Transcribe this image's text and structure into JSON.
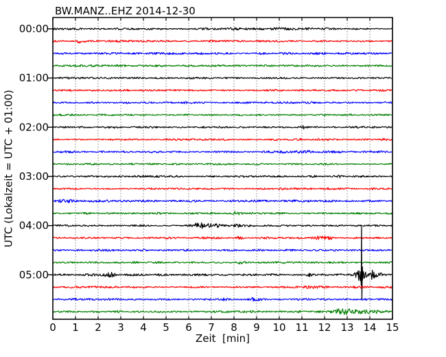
{
  "chart_data": {
    "type": "line",
    "subtype": "helicorder-dayplot",
    "title": "BW.MANZ..EHZ 2014-12-30",
    "xlabel": "Zeit  [min]",
    "ylabel": "UTC (Lokalzeit = UTC + 01:00)",
    "x_range": [
      0,
      15
    ],
    "minutes_per_row": 15,
    "x_tick_labels": [
      "0",
      "1",
      "2",
      "3",
      "4",
      "5",
      "6",
      "7",
      "8",
      "9",
      "10",
      "11",
      "12",
      "13",
      "14",
      "15"
    ],
    "y_tick_labels": [
      "00:00",
      "01:00",
      "02:00",
      "03:00",
      "04:00",
      "05:00"
    ],
    "y_tick_row_step": 4,
    "grid": {
      "vertical_dotted_minutes": [
        1,
        2,
        3,
        4,
        5,
        6,
        7,
        8,
        9,
        10,
        11,
        12,
        13,
        14
      ],
      "horizontal": false
    },
    "background_color": "#ffffff",
    "axis_color": "#000000",
    "trace_color_cycle": [
      "#000000",
      "#ff0000",
      "#0000ff",
      "#007f00"
    ],
    "rows": [
      {
        "time": "00:00",
        "color": "#000000",
        "base": 1.2,
        "events": [
          {
            "t": 9.0,
            "a": 0.7,
            "w": 2.0
          }
        ],
        "spikes": []
      },
      {
        "time": "00:15",
        "color": "#ff0000",
        "base": 1.2,
        "events": [
          {
            "t": 1.15,
            "a": 2.2,
            "w": 0.12
          }
        ],
        "spikes": []
      },
      {
        "time": "00:30",
        "color": "#0000ff",
        "base": 1.2,
        "events": [],
        "spikes": []
      },
      {
        "time": "00:45",
        "color": "#007f00",
        "base": 1.2,
        "events": [],
        "spikes": []
      },
      {
        "time": "01:00",
        "color": "#000000",
        "base": 1.1,
        "events": [],
        "spikes": []
      },
      {
        "time": "01:15",
        "color": "#ff0000",
        "base": 1.2,
        "events": [],
        "spikes": []
      },
      {
        "time": "01:30",
        "color": "#0000ff",
        "base": 1.2,
        "events": [],
        "spikes": []
      },
      {
        "time": "01:45",
        "color": "#007f00",
        "base": 1.1,
        "events": [],
        "spikes": []
      },
      {
        "time": "02:00",
        "color": "#000000",
        "base": 1.1,
        "events": [
          {
            "t": 11.1,
            "a": 1.6,
            "w": 0.15
          }
        ],
        "spikes": []
      },
      {
        "time": "02:15",
        "color": "#ff0000",
        "base": 1.2,
        "events": [],
        "spikes": []
      },
      {
        "time": "02:30",
        "color": "#0000ff",
        "base": 1.2,
        "events": [
          {
            "t": 10.5,
            "a": 0.7,
            "w": 1.2
          },
          {
            "t": 12.8,
            "a": 0.7,
            "w": 0.8
          }
        ],
        "spikes": []
      },
      {
        "time": "02:45",
        "color": "#007f00",
        "base": 1.1,
        "events": [],
        "spikes": []
      },
      {
        "time": "03:00",
        "color": "#000000",
        "base": 1.1,
        "events": [
          {
            "t": 11.5,
            "a": 1.5,
            "w": 0.15
          },
          {
            "t": 12.55,
            "a": 1.8,
            "w": 0.2
          }
        ],
        "spikes": []
      },
      {
        "time": "03:15",
        "color": "#ff0000",
        "base": 1.2,
        "events": [],
        "spikes": []
      },
      {
        "time": "03:30",
        "color": "#0000ff",
        "base": 1.3,
        "events": [
          {
            "t": 0.5,
            "a": 1.0,
            "w": 0.5
          },
          {
            "t": 2.5,
            "a": 0.9,
            "w": 0.15
          }
        ],
        "spikes": []
      },
      {
        "time": "03:45",
        "color": "#007f00",
        "base": 1.1,
        "events": [
          {
            "t": 7.0,
            "a": 0.9,
            "w": 0.15
          },
          {
            "t": 8.15,
            "a": 1.8,
            "w": 0.25
          }
        ],
        "spikes": []
      },
      {
        "time": "04:00",
        "color": "#000000",
        "base": 1.2,
        "events": [
          {
            "t": 6.45,
            "a": 4.5,
            "w": 0.18
          },
          {
            "t": 6.8,
            "a": 2.0,
            "w": 0.3
          },
          {
            "t": 7.3,
            "a": 1.5,
            "w": 0.12
          },
          {
            "t": 8.1,
            "a": 1.6,
            "w": 0.15
          }
        ],
        "spikes": []
      },
      {
        "time": "04:15",
        "color": "#ff0000",
        "base": 1.2,
        "events": [
          {
            "t": 8.25,
            "a": 2.2,
            "w": 0.15
          },
          {
            "t": 11.8,
            "a": 2.0,
            "w": 0.3
          },
          {
            "t": 12.25,
            "a": 1.5,
            "w": 0.12
          }
        ],
        "spikes": []
      },
      {
        "time": "04:30",
        "color": "#0000ff",
        "base": 1.2,
        "events": [],
        "spikes": []
      },
      {
        "time": "04:45",
        "color": "#007f00",
        "base": 1.1,
        "events": [
          {
            "t": 8.3,
            "a": 1.3,
            "w": 0.12
          }
        ],
        "spikes": []
      },
      {
        "time": "05:00",
        "color": "#000000",
        "base": 1.3,
        "events": [
          {
            "t": 2.55,
            "a": 2.8,
            "w": 0.22
          },
          {
            "t": 11.4,
            "a": 2.0,
            "w": 0.15
          },
          {
            "t": 13.63,
            "a": 9.0,
            "w": 0.28
          },
          {
            "t": 14.05,
            "a": 6.0,
            "w": 0.15
          },
          {
            "t": 14.4,
            "a": 2.5,
            "w": 0.2
          }
        ],
        "spikes": [
          {
            "t": 13.63,
            "up": 70,
            "down": 36
          }
        ]
      },
      {
        "time": "05:15",
        "color": "#ff0000",
        "base": 1.2,
        "events": [
          {
            "t": 11.5,
            "a": 0.8,
            "w": 0.8
          }
        ],
        "spikes": []
      },
      {
        "time": "05:30",
        "color": "#0000ff",
        "base": 1.2,
        "events": [
          {
            "t": 7.5,
            "a": 0.9,
            "w": 0.3
          },
          {
            "t": 8.85,
            "a": 1.7,
            "w": 0.25
          }
        ],
        "spikes": []
      },
      {
        "time": "05:45",
        "color": "#007f00",
        "base": 1.2,
        "events": [
          {
            "t": 12.5,
            "a": 1.5,
            "w": 0.2
          },
          {
            "t": 13.0,
            "a": 3.2,
            "w": 0.45
          },
          {
            "t": 13.8,
            "a": 2.2,
            "w": 0.3
          },
          {
            "t": 14.3,
            "a": 1.8,
            "w": 0.15
          },
          {
            "t": 14.7,
            "a": 1.5,
            "w": 0.1
          }
        ],
        "spikes": []
      }
    ]
  }
}
